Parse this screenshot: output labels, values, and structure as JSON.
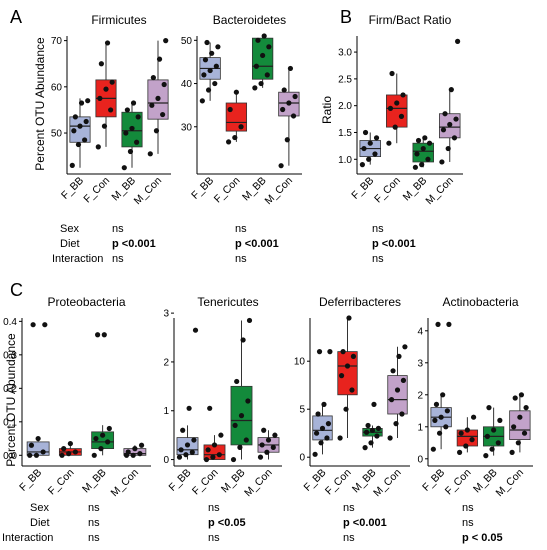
{
  "panel_letters": [
    "A",
    "B",
    "C"
  ],
  "y_labels": {
    "abundance": "Percent OTU Abundance",
    "ratio": "Ratio"
  },
  "stat_row_labels": [
    "Sex",
    "Diet",
    "Interaction"
  ],
  "chart_data": [
    {
      "type": "box",
      "title": "Firmicutes",
      "ylabel": "Percent OTU Abundance",
      "categories": [
        "F_BB",
        "F_Con",
        "M_BB",
        "M_Con"
      ],
      "ylim": [
        42,
        71
      ],
      "yticks": [
        50,
        60,
        70
      ],
      "boxes": [
        {
          "min": 42.5,
          "q1": 48.0,
          "median": 51.5,
          "q3": 53.5,
          "max": 57.5
        },
        {
          "min": 47.0,
          "q1": 53.5,
          "median": 57.5,
          "q3": 61.5,
          "max": 69.5
        },
        {
          "min": 42.5,
          "q1": 47.0,
          "median": 50.5,
          "q3": 54.5,
          "max": 56.5
        },
        {
          "min": 45.5,
          "q1": 53.0,
          "median": 56.5,
          "q3": 61.5,
          "max": 70.0
        }
      ],
      "points": [
        [
          43.0,
          47.5,
          48.5,
          50.5,
          51.5,
          52.5,
          53.5,
          56.5,
          57.0
        ],
        [
          47.0,
          51.5,
          55.0,
          57.5,
          59.5,
          61.0,
          65.0,
          69.5
        ],
        [
          42.5,
          46.0,
          48.0,
          50.0,
          51.0,
          53.5,
          55.0,
          56.5
        ],
        [
          45.5,
          50.5,
          54.0,
          56.0,
          57.5,
          60.5,
          62.0,
          66.0,
          70.0
        ]
      ],
      "stats": {
        "sex": "ns",
        "diet": "p <0.001",
        "interaction": "ns"
      }
    },
    {
      "type": "box",
      "title": "Bacteroidetes",
      "ylabel": "",
      "categories": [
        "F_BB",
        "F_Con",
        "M_BB",
        "M_Con"
      ],
      "ylim": [
        20,
        51
      ],
      "yticks": [
        30,
        40,
        50
      ],
      "boxes": [
        {
          "min": 36.0,
          "q1": 41.0,
          "median": 43.5,
          "q3": 46.0,
          "max": 49.5
        },
        {
          "min": 26.5,
          "q1": 29.0,
          "median": 31.0,
          "q3": 35.5,
          "max": 38.0
        },
        {
          "min": 39.0,
          "q1": 41.0,
          "median": 44.0,
          "q3": 50.5,
          "max": 51.0
        },
        {
          "min": 21.0,
          "q1": 32.5,
          "median": 35.5,
          "q3": 38.0,
          "max": 43.5
        }
      ],
      "points": [
        [
          36.0,
          38.5,
          40.0,
          42.0,
          43.0,
          44.0,
          45.5,
          47.0,
          48.5,
          49.5
        ],
        [
          26.5,
          27.5,
          30.0,
          34.0,
          38.0
        ],
        [
          39.0,
          40.0,
          42.0,
          44.0,
          46.5,
          48.5,
          50.0,
          51.0
        ],
        [
          21.0,
          27.0,
          32.5,
          34.0,
          35.5,
          37.0,
          38.5,
          43.5
        ]
      ],
      "stats": {
        "sex": "ns",
        "diet": "p <0.001",
        "interaction": "ns"
      }
    },
    {
      "type": "box",
      "title": "Firm/Bact Ratio",
      "ylabel": "Ratio",
      "categories": [
        "F_BB",
        "F_Con",
        "M_BB",
        "M_Con"
      ],
      "ylim": [
        0.8,
        3.3
      ],
      "yticks": [
        1.0,
        1.5,
        2.0,
        2.5,
        3.0
      ],
      "boxes": [
        {
          "min": 0.9,
          "q1": 1.05,
          "median": 1.2,
          "q3": 1.35,
          "max": 1.5
        },
        {
          "min": 1.3,
          "q1": 1.6,
          "median": 1.95,
          "q3": 2.2,
          "max": 2.6
        },
        {
          "min": 0.85,
          "q1": 0.95,
          "median": 1.15,
          "q3": 1.3,
          "max": 1.4
        },
        {
          "min": 0.95,
          "q1": 1.4,
          "median": 1.6,
          "q3": 1.85,
          "max": 2.3
        }
      ],
      "points": [
        [
          0.9,
          1.0,
          1.1,
          1.2,
          1.3,
          1.4,
          1.5
        ],
        [
          1.3,
          1.6,
          1.8,
          1.95,
          2.05,
          2.2,
          2.6
        ],
        [
          0.85,
          0.9,
          1.0,
          1.1,
          1.2,
          1.3,
          1.35,
          1.4
        ],
        [
          0.95,
          1.2,
          1.4,
          1.55,
          1.65,
          1.75,
          1.85,
          2.3,
          3.2
        ]
      ],
      "stats": {
        "sex": "ns",
        "diet": "p <0.001",
        "interaction": "ns"
      }
    },
    {
      "type": "box",
      "title": "Proteobacteria",
      "ylabel": "Percent OTU Abundance",
      "categories": [
        "F_BB",
        "F_Con",
        "M_BB",
        "M_Con"
      ],
      "ylim": [
        -0.02,
        0.41
      ],
      "yticks": [
        0.0,
        0.1,
        0.2,
        0.3,
        0.4
      ],
      "boxes": [
        {
          "min": 0.0,
          "q1": 0.0,
          "median": 0.01,
          "q3": 0.04,
          "max": 0.05
        },
        {
          "min": 0.0,
          "q1": 0.0,
          "median": 0.01,
          "q3": 0.02,
          "max": 0.035
        },
        {
          "min": 0.0,
          "q1": 0.02,
          "median": 0.04,
          "q3": 0.07,
          "max": 0.09
        },
        {
          "min": 0.0,
          "q1": 0.0,
          "median": 0.005,
          "q3": 0.02,
          "max": 0.03
        }
      ],
      "points": [
        [
          0.0,
          0.0,
          0.01,
          0.03,
          0.05,
          0.39,
          0.39
        ],
        [
          0.0,
          0.005,
          0.01,
          0.02,
          0.035
        ],
        [
          0.0,
          0.02,
          0.04,
          0.05,
          0.06,
          0.08,
          0.36,
          0.36
        ],
        [
          0.0,
          0.0,
          0.005,
          0.01,
          0.02,
          0.03
        ]
      ],
      "stats": {
        "sex": "ns",
        "diet": "ns",
        "interaction": "ns"
      }
    },
    {
      "type": "box",
      "title": "Tenericutes",
      "ylabel": "",
      "categories": [
        "F_BB",
        "F_Con",
        "M_BB",
        "M_Con"
      ],
      "ylim": [
        -0.05,
        2.9
      ],
      "yticks": [
        0,
        1,
        2,
        3
      ],
      "boxes": [
        {
          "min": 0.0,
          "q1": 0.1,
          "median": 0.2,
          "q3": 0.45,
          "max": 0.7
        },
        {
          "min": 0.0,
          "q1": 0.0,
          "median": 0.1,
          "q3": 0.3,
          "max": 0.5
        },
        {
          "min": 0.0,
          "q1": 0.3,
          "median": 0.8,
          "q3": 1.5,
          "max": 2.85
        },
        {
          "min": 0.0,
          "q1": 0.15,
          "median": 0.3,
          "q3": 0.45,
          "max": 0.6
        }
      ],
      "points": [
        [
          0.05,
          0.1,
          0.15,
          0.2,
          0.3,
          0.4,
          0.6,
          1.05,
          2.65
        ],
        [
          0.0,
          0.05,
          0.1,
          0.2,
          0.3,
          0.5,
          1.05
        ],
        [
          0.0,
          0.25,
          0.4,
          0.7,
          0.9,
          1.2,
          1.6,
          2.45,
          2.85
        ],
        [
          0.05,
          0.15,
          0.25,
          0.3,
          0.4,
          0.5,
          0.6
        ]
      ],
      "stats": {
        "sex": "ns",
        "diet": "p <0.05",
        "interaction": "ns"
      }
    },
    {
      "type": "box",
      "title": "Deferribacteres",
      "ylabel": "",
      "categories": [
        "F_BB",
        "F_Con",
        "M_BB",
        "M_Con"
      ],
      "ylim": [
        -0.5,
        14.5
      ],
      "yticks": [
        0,
        5,
        10
      ],
      "boxes": [
        {
          "min": 0.3,
          "q1": 1.8,
          "median": 2.8,
          "q3": 4.3,
          "max": 5.5
        },
        {
          "min": 2.0,
          "q1": 6.5,
          "median": 9.5,
          "q3": 11.0,
          "max": 14.5
        },
        {
          "min": 1.0,
          "q1": 2.2,
          "median": 2.6,
          "q3": 3.0,
          "max": 3.3
        },
        {
          "min": 2.0,
          "q1": 4.5,
          "median": 6.0,
          "q3": 8.5,
          "max": 11.5
        }
      ],
      "points": [
        [
          0.3,
          1.5,
          2.0,
          2.5,
          3.0,
          3.5,
          4.5,
          5.5,
          11.0,
          11.0
        ],
        [
          2.0,
          5.0,
          7.0,
          8.5,
          9.5,
          10.5,
          11.0,
          14.5
        ],
        [
          1.0,
          1.5,
          2.2,
          2.6,
          2.8,
          3.0,
          3.3,
          5.5
        ],
        [
          2.0,
          3.5,
          4.5,
          6.0,
          7.0,
          8.0,
          9.0,
          10.5,
          11.5
        ]
      ],
      "stats": {
        "sex": "ns",
        "diet": "p <0.001",
        "interaction": "ns"
      }
    },
    {
      "type": "box",
      "title": "Actinobacteria",
      "ylabel": "",
      "categories": [
        "F_BB",
        "F_Con",
        "M_BB",
        "M_Con"
      ],
      "ylim": [
        -0.1,
        4.4
      ],
      "yticks": [
        0,
        1,
        2,
        3,
        4
      ],
      "boxes": [
        {
          "min": 0.3,
          "q1": 1.0,
          "median": 1.3,
          "q3": 1.6,
          "max": 2.0
        },
        {
          "min": 0.2,
          "q1": 0.4,
          "median": 0.7,
          "q3": 0.9,
          "max": 1.3
        },
        {
          "min": 0.1,
          "q1": 0.4,
          "median": 0.7,
          "q3": 1.0,
          "max": 1.6
        },
        {
          "min": 0.2,
          "q1": 0.6,
          "median": 0.9,
          "q3": 1.5,
          "max": 2.0
        }
      ],
      "points": [
        [
          0.3,
          0.8,
          1.0,
          1.2,
          1.3,
          1.5,
          1.7,
          2.0,
          4.2,
          4.2
        ],
        [
          0.2,
          0.4,
          0.6,
          0.8,
          0.9,
          1.3
        ],
        [
          0.1,
          0.3,
          0.5,
          0.7,
          0.9,
          1.2,
          1.6
        ],
        [
          0.2,
          0.5,
          0.8,
          1.0,
          1.3,
          1.6,
          1.9,
          2.0
        ]
      ],
      "stats": {
        "sex": "ns",
        "diet": "ns",
        "interaction": "p < 0.05"
      }
    }
  ],
  "colors": {
    "F_BB": "#a7b3d8",
    "F_Con": "#e8231e",
    "M_BB": "#138a3b",
    "M_Con": "#c2a2c9",
    "box_stroke": "#333333",
    "point": "#111111"
  }
}
